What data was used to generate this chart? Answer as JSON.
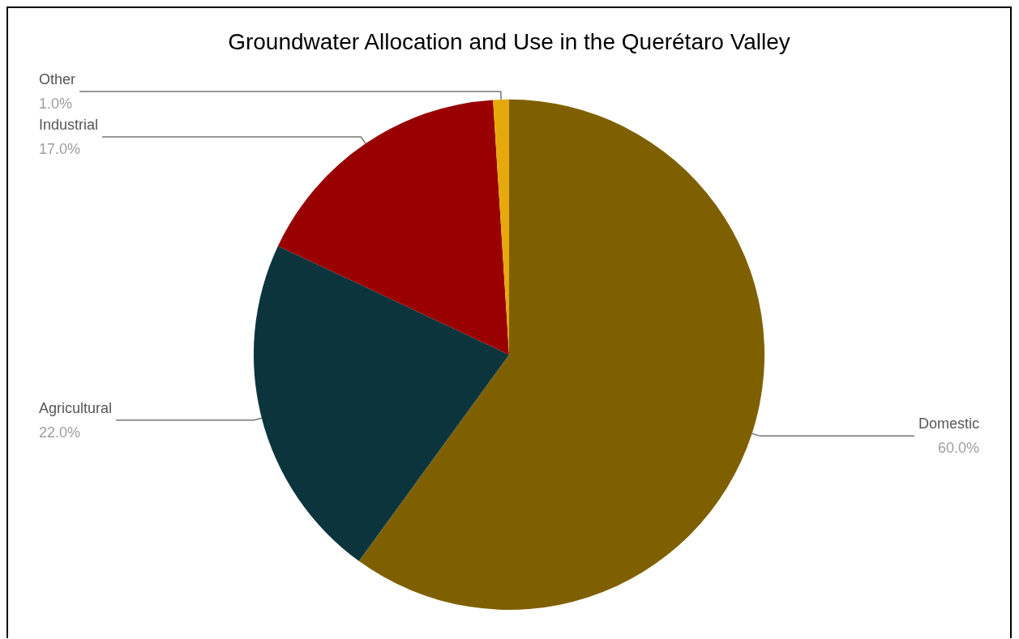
{
  "chart_data": {
    "type": "pie",
    "title": "Groundwater Allocation and Use in the Querétaro Valley",
    "categories": [
      "Domestic",
      "Agricultural",
      "Industrial",
      "Other"
    ],
    "values": [
      60,
      22,
      17,
      1
    ],
    "colors": [
      "#7f6000",
      "#0c343d",
      "#990000",
      "#e6a90c"
    ],
    "value_labels": [
      "60.0%",
      "22.0%",
      "17.0%",
      "1.0%"
    ],
    "legend": false
  }
}
